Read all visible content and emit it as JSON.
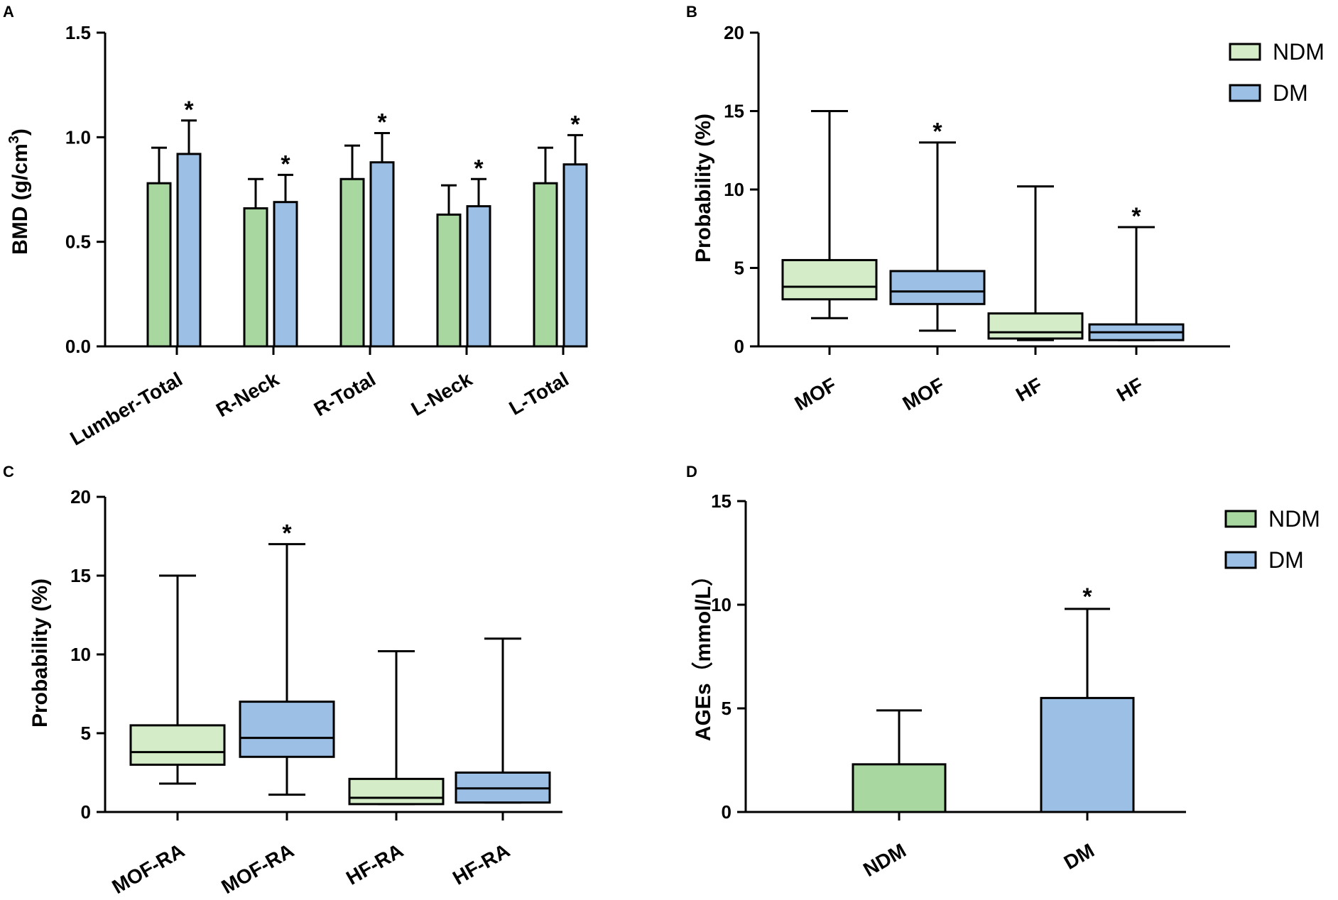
{
  "chart_data": [
    {
      "panel": "A",
      "type": "bar",
      "ylabel": "BMD (g/cm",
      "ylabel_sup": "3",
      "ylabel_close": ")",
      "ylim": [
        0,
        1.5
      ],
      "yticks": [
        0.0,
        0.5,
        1.0,
        1.5
      ],
      "ytick_labels": [
        "0.0",
        "0.5",
        "1.0",
        "1.5"
      ],
      "categories": [
        "Lumber-Total",
        "R-Neck",
        "R-Total",
        "L-Neck",
        "L-Total"
      ],
      "series": [
        {
          "name": "NDM",
          "color": "#a8d8a0",
          "values": [
            0.78,
            0.66,
            0.8,
            0.63,
            0.78
          ],
          "errors": [
            0.17,
            0.14,
            0.16,
            0.14,
            0.17
          ]
        },
        {
          "name": "DM",
          "color": "#9cbfe6",
          "values": [
            0.92,
            0.69,
            0.88,
            0.67,
            0.87
          ],
          "errors": [
            0.16,
            0.13,
            0.14,
            0.13,
            0.14
          ]
        }
      ],
      "significance": "*"
    },
    {
      "panel": "B",
      "type": "boxplot",
      "ylabel": "Probability (%)",
      "ylim": [
        0,
        20
      ],
      "yticks": [
        0,
        5,
        10,
        15,
        20
      ],
      "ytick_labels": [
        "0",
        "5",
        "10",
        "15",
        "20"
      ],
      "categories": [
        "MOF",
        "MOF",
        "HF",
        "HF"
      ],
      "groups": [
        "NDM",
        "DM",
        "NDM",
        "DM"
      ],
      "boxes": [
        {
          "min": 1.8,
          "q1": 3.0,
          "median": 3.8,
          "q3": 5.5,
          "max": 15.0,
          "star": false
        },
        {
          "min": 1.0,
          "q1": 2.7,
          "median": 3.5,
          "q3": 4.8,
          "max": 13.0,
          "star": true
        },
        {
          "min": 0.4,
          "q1": 0.5,
          "median": 0.9,
          "q3": 2.1,
          "max": 10.2,
          "star": false
        },
        {
          "min": 0.4,
          "q1": 0.4,
          "median": 0.9,
          "q3": 1.4,
          "max": 7.6,
          "star": true
        }
      ],
      "legend": [
        {
          "label": "NDM",
          "color": "#d4ecc8"
        },
        {
          "label": "DM",
          "color": "#9cbfe6"
        }
      ],
      "significance": "*"
    },
    {
      "panel": "C",
      "type": "boxplot",
      "ylabel": "Probability (%)",
      "ylim": [
        0,
        20
      ],
      "yticks": [
        0,
        5,
        10,
        15,
        20
      ],
      "ytick_labels": [
        "0",
        "5",
        "10",
        "15",
        "20"
      ],
      "categories": [
        "MOF-RA",
        "MOF-RA",
        "HF-RA",
        "HF-RA"
      ],
      "groups": [
        "NDM",
        "DM",
        "NDM",
        "DM"
      ],
      "boxes": [
        {
          "min": 1.8,
          "q1": 3.0,
          "median": 3.8,
          "q3": 5.5,
          "max": 15.0,
          "star": false
        },
        {
          "min": 1.1,
          "q1": 3.5,
          "median": 4.7,
          "q3": 7.0,
          "max": 17.0,
          "star": true
        },
        {
          "min": 0.5,
          "q1": 0.5,
          "median": 0.9,
          "q3": 2.1,
          "max": 10.2,
          "star": false
        },
        {
          "min": 0.6,
          "q1": 0.6,
          "median": 1.5,
          "q3": 2.5,
          "max": 11.0,
          "star": false
        }
      ],
      "significance": "*"
    },
    {
      "panel": "D",
      "type": "bar",
      "ylabel": "AGEs（mmol/L）",
      "ylim": [
        0,
        15
      ],
      "yticks": [
        0,
        5,
        10,
        15
      ],
      "ytick_labels": [
        "0",
        "5",
        "10",
        "15"
      ],
      "categories": [
        "NDM",
        "DM"
      ],
      "values": [
        2.3,
        5.5
      ],
      "errors": [
        2.6,
        4.3
      ],
      "colors": [
        "#a8d8a0",
        "#9cbfe6"
      ],
      "legend": [
        {
          "label": "NDM",
          "color": "#a8d8a0"
        },
        {
          "label": "DM",
          "color": "#9cbfe6"
        }
      ],
      "significance": "*"
    }
  ]
}
